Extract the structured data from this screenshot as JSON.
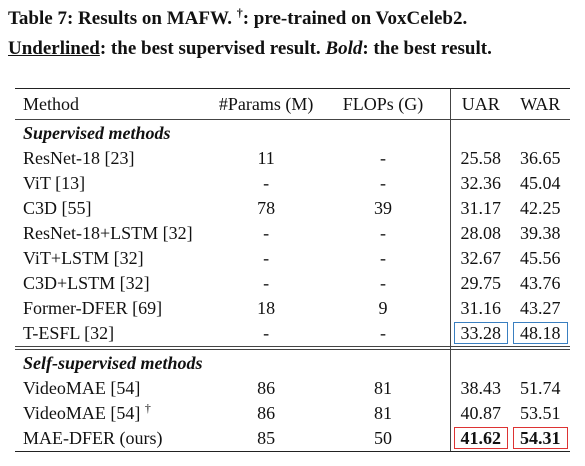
{
  "caption": {
    "line1_prefix": "Table 7: Results on MAFW. ",
    "dagger": "†",
    "line1_suffix": ": pre-trained on VoxCeleb2.",
    "underlined_term": "Underlined",
    "line2_mid": ": the best supervised result. ",
    "bold_term": "Bold",
    "line2_end": ": the best result."
  },
  "table": {
    "headers": {
      "method": "Method",
      "params": "#Params (M)",
      "flops": "FLOPs (G)",
      "uar": "UAR",
      "war": "WAR"
    },
    "supervised_title": "Supervised methods",
    "supervised": [
      {
        "method": "ResNet-18 [23]",
        "params": "11",
        "flops": "-",
        "uar": "25.58",
        "war": "36.65"
      },
      {
        "method": "ViT [13]",
        "params": "-",
        "flops": "-",
        "uar": "32.36",
        "war": "45.04"
      },
      {
        "method": "C3D [55]",
        "params": "78",
        "flops": "39",
        "uar": "31.17",
        "war": "42.25"
      },
      {
        "method": "ResNet-18+LSTM [32]",
        "params": "-",
        "flops": "-",
        "uar": "28.08",
        "war": "39.38"
      },
      {
        "method": "ViT+LSTM [32]",
        "params": "-",
        "flops": "-",
        "uar": "32.67",
        "war": "45.56"
      },
      {
        "method": "C3D+LSTM [32]",
        "params": "-",
        "flops": "-",
        "uar": "29.75",
        "war": "43.76"
      },
      {
        "method": "Former-DFER [69]",
        "params": "18",
        "flops": "9",
        "uar": "31.16",
        "war": "43.27"
      },
      {
        "method": "T-ESFL [32]",
        "params": "-",
        "flops": "-",
        "uar": "33.28",
        "war": "48.18"
      }
    ],
    "selfsup_title": "Self-supervised methods",
    "selfsup": [
      {
        "method": "VideoMAE [54]",
        "params": "86",
        "flops": "81",
        "uar": "38.43",
        "war": "51.74"
      },
      {
        "method": "VideoMAE [54]",
        "dagger": "†",
        "params": "86",
        "flops": "81",
        "uar": "40.87",
        "war": "53.51"
      },
      {
        "method": "MAE-DFER (ours)",
        "params": "85",
        "flops": "50",
        "uar": "41.62",
        "war": "54.31"
      }
    ],
    "colors": {
      "best_supervised_box": "#3a7fc0",
      "best_result_box": "#d33333"
    }
  }
}
